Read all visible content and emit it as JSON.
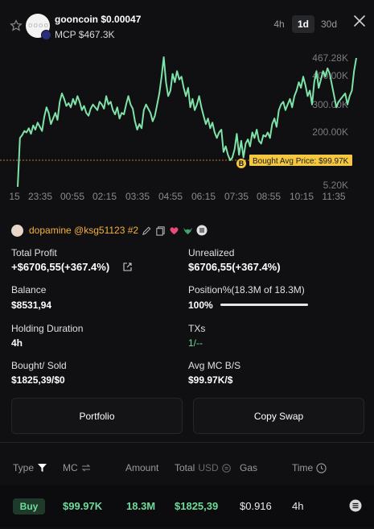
{
  "header": {
    "token_name": "gooncoin",
    "price": "$0.00047",
    "mcp": "MCP $467.3K",
    "avatar_text": "oooo",
    "timeframes": [
      "4h",
      "1d",
      "30d"
    ],
    "active_timeframe": "1d"
  },
  "chart_data": {
    "type": "line",
    "y_ticks": [
      "467.28K",
      "400.00K",
      "300.00K",
      "200.00K",
      "5.20K"
    ],
    "x_ticks": [
      "15",
      "23:35",
      "00:55",
      "02:15",
      "03:35",
      "04:55",
      "06:15",
      "07:35",
      "08:55",
      "10:15",
      "11:35"
    ],
    "series": [
      {
        "values": [
          5,
          180,
          190,
          205,
          200,
          215,
          195,
          225,
          210,
          235,
          220,
          205,
          255,
          290,
          270,
          230,
          250,
          270,
          245,
          310,
          340,
          320,
          295,
          305,
          290,
          320,
          300,
          330,
          310,
          280,
          295,
          270,
          260,
          285,
          300,
          290,
          280,
          310,
          300,
          285,
          330,
          300,
          310,
          280,
          265,
          290,
          250,
          270,
          265,
          300,
          330,
          300,
          285,
          240,
          210,
          230,
          215,
          280,
          300,
          285,
          270,
          240,
          260,
          300,
          340,
          400,
          470,
          380,
          330,
          350,
          410,
          380,
          420,
          390,
          400,
          360,
          330,
          360,
          290,
          320,
          280,
          300,
          330,
          290,
          260,
          230,
          250,
          215,
          235,
          200,
          180,
          200,
          210,
          130,
          150,
          120,
          100,
          110,
          140,
          195,
          120,
          170,
          110,
          160,
          175,
          150,
          200,
          180,
          210,
          170,
          160,
          190,
          185,
          200,
          180,
          230,
          250,
          220,
          280,
          300,
          310,
          280,
          300,
          320,
          290,
          330,
          350,
          380,
          360,
          400,
          370,
          330,
          350,
          300,
          380,
          420,
          360,
          390,
          420,
          400,
          430,
          410,
          370,
          330,
          290,
          310,
          320,
          330,
          340,
          300,
          330,
          350,
          420,
          467
        ]
      }
    ],
    "bought_avg_label": "Bought Avg Price: $99.97K",
    "bought_marker": "B",
    "line_color": "#7ee3a8"
  },
  "user": {
    "name": "dopamine @ksg51123 #2"
  },
  "stats": {
    "total_profit_label": "Total Profit",
    "total_profit_value": "+$6706,55(+367.4%)",
    "unrealized_label": "Unrealized",
    "unrealized_value": "$6706,55(+367.4%)",
    "balance_label": "Balance",
    "balance_value": "$8531,94",
    "position_label": "Position%(18.3M of 18.3M)",
    "position_value": "100%",
    "position_fraction": 1.0,
    "holding_label": "Holding Duration",
    "holding_value": "4h",
    "txs_label": "TXs",
    "txs_value": "1/--",
    "bought_sold_label": "Bought/ Sold",
    "bought_sold_value": "$1825,39/$0",
    "avg_mc_label": "Avg MC B/S",
    "avg_mc_value": "$99.97K/$"
  },
  "buttons": {
    "portfolio": "Portfolio",
    "copy_swap": "Copy Swap"
  },
  "table": {
    "headers": {
      "type": "Type",
      "mc": "MC",
      "amount": "Amount",
      "total": "Total",
      "usd": "USD",
      "gas": "Gas",
      "time": "Time"
    },
    "rows": [
      {
        "type": "Buy",
        "mc": "$99.97K",
        "amount": "18.3M",
        "total": "$1825,39",
        "gas": "$0.916",
        "time": "4h"
      }
    ]
  }
}
